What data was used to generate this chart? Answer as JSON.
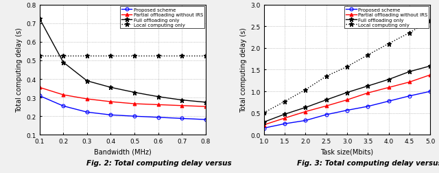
{
  "fig2": {
    "xlabel": "Bandwidth (MHz)",
    "ylabel": "Total computing delay (s)",
    "xlim": [
      0.1,
      0.8
    ],
    "ylim": [
      0.1,
      0.8
    ],
    "xticks": [
      0.1,
      0.2,
      0.3,
      0.4,
      0.5,
      0.6,
      0.7,
      0.8
    ],
    "yticks": [
      0.1,
      0.2,
      0.3,
      0.4,
      0.5,
      0.6,
      0.7,
      0.8
    ],
    "proposed_x": [
      0.1,
      0.2,
      0.3,
      0.4,
      0.5,
      0.6,
      0.7,
      0.8
    ],
    "proposed_y": [
      0.31,
      0.255,
      0.222,
      0.207,
      0.2,
      0.194,
      0.188,
      0.182
    ],
    "partial_x": [
      0.1,
      0.2,
      0.3,
      0.4,
      0.5,
      0.6,
      0.7,
      0.8
    ],
    "partial_y": [
      0.355,
      0.315,
      0.293,
      0.278,
      0.267,
      0.262,
      0.257,
      0.252
    ],
    "full_x": [
      0.1,
      0.2,
      0.3,
      0.4,
      0.5,
      0.6,
      0.7,
      0.8
    ],
    "full_y": [
      0.725,
      0.49,
      0.39,
      0.355,
      0.328,
      0.305,
      0.287,
      0.275
    ],
    "local_x": [
      0.1,
      0.2,
      0.3,
      0.4,
      0.5,
      0.6,
      0.7,
      0.8
    ],
    "local_y": [
      0.527,
      0.527,
      0.527,
      0.527,
      0.527,
      0.527,
      0.527,
      0.527
    ]
  },
  "fig3": {
    "xlabel": "Task size(Mbits)",
    "ylabel": "Total computing delay (s)",
    "xlim": [
      1.0,
      5.0
    ],
    "ylim": [
      0.0,
      3.0
    ],
    "xticks": [
      1.0,
      1.5,
      2.0,
      2.5,
      3.0,
      3.5,
      4.0,
      4.5,
      5.0
    ],
    "yticks": [
      0.0,
      0.5,
      1.0,
      1.5,
      2.0,
      2.5,
      3.0
    ],
    "proposed_x": [
      1.0,
      1.5,
      2.0,
      2.5,
      3.0,
      3.5,
      4.0,
      4.5,
      5.0
    ],
    "proposed_y": [
      0.155,
      0.255,
      0.33,
      0.465,
      0.565,
      0.655,
      0.775,
      0.895,
      1.0
    ],
    "partial_x": [
      1.0,
      1.5,
      2.0,
      2.5,
      3.0,
      3.5,
      4.0,
      4.5,
      5.0
    ],
    "partial_y": [
      0.23,
      0.385,
      0.535,
      0.665,
      0.805,
      0.965,
      1.09,
      1.215,
      1.38
    ],
    "full_x": [
      1.0,
      1.5,
      2.0,
      2.5,
      3.0,
      3.5,
      4.0,
      4.5,
      5.0
    ],
    "full_y": [
      0.295,
      0.475,
      0.63,
      0.805,
      0.975,
      1.125,
      1.275,
      1.455,
      1.585
    ],
    "local_x": [
      1.0,
      1.5,
      2.0,
      2.5,
      3.0,
      3.5,
      4.0,
      4.5,
      5.0
    ],
    "local_y": [
      0.51,
      0.77,
      1.04,
      1.35,
      1.57,
      1.84,
      2.1,
      2.35,
      2.63
    ]
  },
  "legend_labels": [
    "Proposed scheme",
    "Partial offloading without IRS",
    "Full offloading only",
    "Local computing only"
  ],
  "colors_proposed": "blue",
  "colors_partial": "red",
  "colors_full": "black",
  "colors_local": "black",
  "caption2": "Fig. 2:",
  "caption2b": " Total computing delay versus",
  "caption3": "Fig. 3:",
  "caption3b": " Total computing delay versus",
  "bg_color": "#f0f0f0"
}
